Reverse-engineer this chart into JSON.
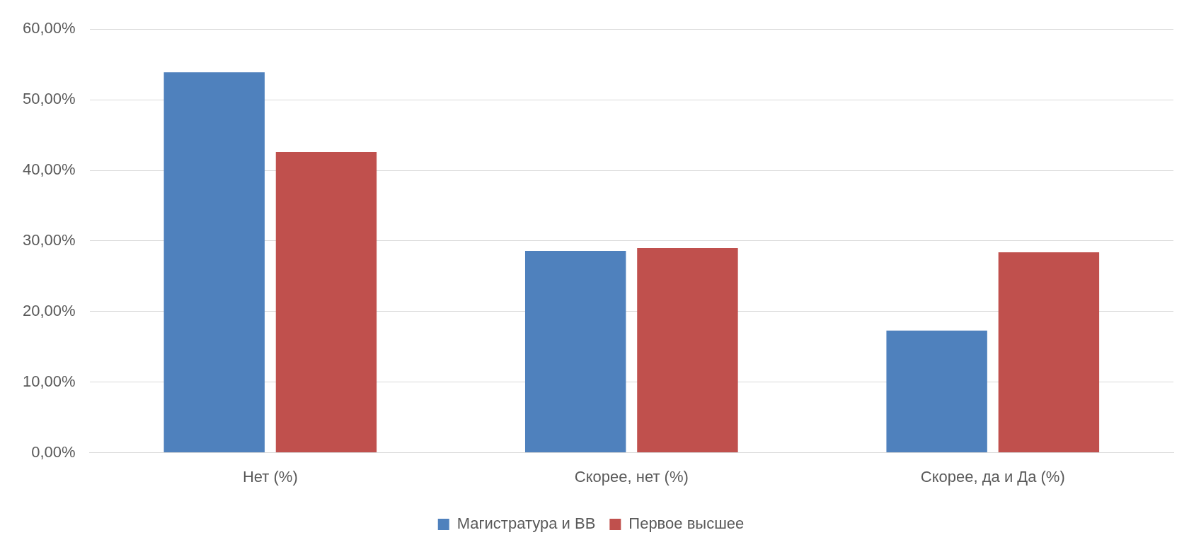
{
  "chart_data": {
    "type": "bar",
    "categories": [
      "Нет (%)",
      "Скорее, нет (%)",
      "Скорее, да и Да (%)"
    ],
    "series": [
      {
        "name": "Магистратура и ВВ",
        "color": "#4f81bd",
        "values": [
          53.9,
          28.6,
          17.3
        ]
      },
      {
        "name": "Первое высшее",
        "color": "#c0504d",
        "values": [
          42.6,
          29.0,
          28.4
        ]
      }
    ],
    "ylim": [
      0,
      60
    ],
    "yticks": [
      {
        "value": 0,
        "label": "0,00%"
      },
      {
        "value": 10,
        "label": "10,00%"
      },
      {
        "value": 20,
        "label": "20,00%"
      },
      {
        "value": 30,
        "label": "30,00%"
      },
      {
        "value": 40,
        "label": "40,00%"
      },
      {
        "value": 50,
        "label": "50,00%"
      },
      {
        "value": 60,
        "label": "60,00%"
      }
    ],
    "grid": "y",
    "legend": "bottom"
  }
}
